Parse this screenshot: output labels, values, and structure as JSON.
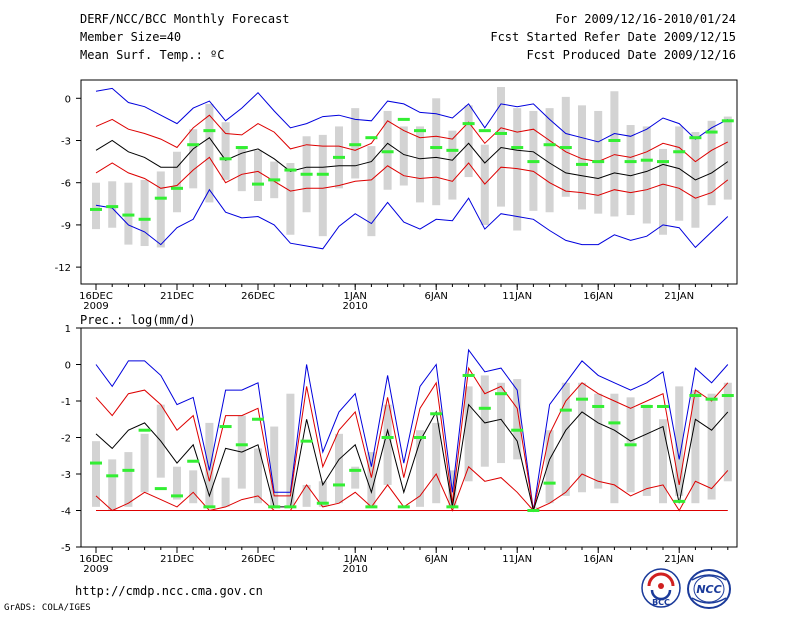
{
  "header": {
    "title": "DERF/NCC/BCC Monthly Forecast",
    "members": "Member Size=40",
    "variable": "Mean Surf. Temp.: ºC",
    "period": "For 2009/12/16-2010/01/24",
    "started": "Fcst Started Refer Date 2009/12/15",
    "produced": "Fcst Produced Date 2009/12/16"
  },
  "footer": {
    "url": "http://cmdp.ncc.cma.gov.cn",
    "credit": "GrADS: COLA/IGES",
    "logo_bcc": "BCC",
    "logo_ncc": "NCC"
  },
  "colors": {
    "box": "#d3d3d3",
    "median": "#33ee33",
    "mean": "#000000",
    "inner": "#dd0000",
    "outer": "#0000dd"
  },
  "chart_data": [
    {
      "type": "line",
      "title": "Mean Surf. Temp.: ºC",
      "xlabels": [
        {
          "day": 0,
          "line1": "16DEC",
          "line2": "2009"
        },
        {
          "day": 5,
          "line1": "21DEC",
          "line2": ""
        },
        {
          "day": 10,
          "line1": "26DEC",
          "line2": ""
        },
        {
          "day": 16,
          "line1": "1JAN",
          "line2": "2010"
        },
        {
          "day": 21,
          "line1": "6JAN",
          "line2": ""
        },
        {
          "day": 26,
          "line1": "11JAN",
          "line2": ""
        },
        {
          "day": 31,
          "line1": "16JAN",
          "line2": ""
        },
        {
          "day": 36,
          "line1": "21JAN",
          "line2": ""
        }
      ],
      "yticks": [
        -12,
        -9,
        -6,
        -3,
        0
      ],
      "ylim": [
        -13.2,
        1.3
      ],
      "ndays": 40,
      "box_top": [
        -6,
        -5.9,
        -6,
        -5.8,
        -5.2,
        -3.8,
        -2.2,
        -0.4,
        -1.7,
        -3.4,
        -3.7,
        -4.5,
        -4.6,
        -2.7,
        -2.6,
        -2,
        -0.7,
        -3.4,
        -0.9,
        -2,
        -2,
        0,
        -2.3,
        -0.5,
        -3.3,
        0.8,
        -0.7,
        -0.9,
        -0.7,
        0.1,
        -0.5,
        -0.9,
        0.5,
        -1.9,
        -2,
        -3.6,
        -2,
        -2.4,
        -1.6,
        -1.3
      ],
      "box_bottom": [
        -9.3,
        -9.2,
        -10.4,
        -10.5,
        -10.6,
        -8.1,
        -6.4,
        -7.4,
        -5.8,
        -6.6,
        -7.3,
        -7.1,
        -9.7,
        -8.1,
        -9.8,
        -6.4,
        -5.7,
        -9.8,
        -6.5,
        -6.2,
        -7.4,
        -7.6,
        -7.2,
        -5.6,
        -9,
        -7.7,
        -9.4,
        -8,
        -8.1,
        -7,
        -7.9,
        -8.2,
        -8.4,
        -8.3,
        -8.9,
        -9.7,
        -8.7,
        -9.2,
        -7.6,
        -7.2
      ],
      "median": [
        -7.9,
        -7.7,
        -8.3,
        -8.6,
        -7.1,
        -6.4,
        -3.3,
        -2.3,
        -4.3,
        -3.5,
        -6.1,
        -5.8,
        -5.1,
        -5.4,
        -5.4,
        -4.2,
        -3.3,
        -2.8,
        -3.8,
        -1.5,
        -2.3,
        -3.5,
        -3.7,
        -1.8,
        -2.3,
        -2.5,
        -3.5,
        -4.5,
        -3.3,
        -3.5,
        -4.7,
        -4.5,
        -3,
        -4.5,
        -4.4,
        -4.5,
        -3.8,
        -2.8,
        -2.4,
        -1.6
      ],
      "series": [
        {
          "name": "upper",
          "role": "outer",
          "values": [
            0.5,
            0.7,
            -0.3,
            -0.6,
            -1.2,
            -1.8,
            -0.7,
            -0.2,
            -1.6,
            -0.7,
            0.4,
            -0.9,
            -2.1,
            -1.8,
            -1.3,
            -1.2,
            -1.5,
            -1.6,
            -0.2,
            -0.4,
            -1,
            -1.1,
            -1.4,
            -0.4,
            -2.1,
            -0.4,
            -0.6,
            -0.4,
            -1.5,
            -2.5,
            -2.8,
            -3.1,
            -2.5,
            -2.7,
            -2.2,
            -1.4,
            -1.8,
            -2.9,
            -2.1,
            -1.5
          ]
        },
        {
          "name": "upper2",
          "role": "inner",
          "values": [
            -2,
            -1.5,
            -2.2,
            -2.5,
            -2.9,
            -3.5,
            -2.1,
            -1.2,
            -2.5,
            -2.6,
            -1.8,
            -2.4,
            -3.6,
            -3.3,
            -3.4,
            -3.4,
            -3.7,
            -3.2,
            -1.6,
            -2.3,
            -2.8,
            -2.7,
            -2.9,
            -1.7,
            -3.2,
            -2.1,
            -2.4,
            -2.2,
            -3,
            -3.8,
            -4.3,
            -4.5,
            -4,
            -4.2,
            -3.8,
            -3.2,
            -3.5,
            -4.5,
            -3.7,
            -3.1
          ]
        },
        {
          "name": "mean",
          "role": "mean",
          "values": [
            -3.7,
            -3,
            -3.8,
            -4.2,
            -4.9,
            -4.9,
            -3.6,
            -2.8,
            -4.4,
            -3.9,
            -3.6,
            -4.3,
            -5.2,
            -4.9,
            -4.9,
            -4.8,
            -4.8,
            -4.5,
            -3.2,
            -4,
            -4.3,
            -4.2,
            -4.4,
            -3.2,
            -4.6,
            -3.5,
            -3.7,
            -3.8,
            -4.6,
            -5.3,
            -5.5,
            -5.7,
            -5.3,
            -5.5,
            -5.2,
            -4.7,
            -5,
            -5.8,
            -5.3,
            -4.5
          ]
        },
        {
          "name": "lower2",
          "role": "inner",
          "values": [
            -5.3,
            -4.6,
            -5.3,
            -5.7,
            -6.4,
            -6.2,
            -5.1,
            -4.2,
            -6,
            -5.4,
            -5.2,
            -5.9,
            -6.6,
            -6.4,
            -6.4,
            -6.2,
            -5.9,
            -5.8,
            -4.8,
            -5.5,
            -5.7,
            -5.6,
            -5.9,
            -4.6,
            -6.1,
            -4.9,
            -5,
            -5.2,
            -6,
            -6.6,
            -6.7,
            -6.9,
            -6.5,
            -6.7,
            -6.5,
            -6.1,
            -6.4,
            -7.1,
            -6.7,
            -5.8
          ]
        },
        {
          "name": "lower",
          "role": "outer",
          "values": [
            -7.6,
            -7.8,
            -9,
            -9.5,
            -10.4,
            -9.2,
            -8.6,
            -6.5,
            -8.1,
            -8.5,
            -8.4,
            -9,
            -10.3,
            -10.5,
            -10.7,
            -9.1,
            -8.2,
            -8.9,
            -7.4,
            -8.8,
            -9.3,
            -8.6,
            -8.7,
            -7.1,
            -9.3,
            -8.2,
            -8.4,
            -8.6,
            -9.4,
            -10.1,
            -10.4,
            -10.4,
            -9.7,
            -10.1,
            -9.8,
            -9,
            -9.2,
            -10.6,
            -9.5,
            -8.4
          ]
        }
      ]
    },
    {
      "type": "line",
      "title": "Prec.: log(mm/d)",
      "xlabels": [
        {
          "day": 0,
          "line1": "16DEC",
          "line2": "2009"
        },
        {
          "day": 5,
          "line1": "21DEC",
          "line2": ""
        },
        {
          "day": 10,
          "line1": "26DEC",
          "line2": ""
        },
        {
          "day": 16,
          "line1": "1JAN",
          "line2": "2010"
        },
        {
          "day": 21,
          "line1": "6JAN",
          "line2": ""
        },
        {
          "day": 26,
          "line1": "11JAN",
          "line2": ""
        },
        {
          "day": 31,
          "line1": "16JAN",
          "line2": ""
        },
        {
          "day": 36,
          "line1": "21JAN",
          "line2": ""
        }
      ],
      "yticks": [
        -5,
        -4,
        -3,
        -2,
        -1,
        0,
        1
      ],
      "ylim": [
        -5,
        1
      ],
      "ndays": 40,
      "box_top": [
        -2.1,
        -2.6,
        -2.4,
        -1.9,
        -1.1,
        -2.8,
        -2.9,
        -1.6,
        -3.1,
        -1.4,
        -2.3,
        -1.7,
        -0.8,
        -3.3,
        -3.2,
        -1.9,
        -2.8,
        -2.4,
        -1.1,
        -3.9,
        -1.8,
        -1.6,
        -2.9,
        -0.6,
        -0.3,
        -0.5,
        -0.4,
        -3.9,
        -1.8,
        -0.5,
        -0.5,
        -0.8,
        -0.8,
        -0.9,
        -1.1,
        -1.5,
        -0.6,
        -0.7,
        -0.8,
        -0.5
      ],
      "box_bottom": [
        -3.9,
        -4,
        -3.9,
        -3.5,
        -3.1,
        -3.7,
        -3.8,
        -3.9,
        -3.9,
        -3.4,
        -3.8,
        -3.9,
        -3.9,
        -3.9,
        -3.9,
        -3.8,
        -3.4,
        -3.9,
        -3.3,
        -3.9,
        -3.9,
        -3.8,
        -3.9,
        -3.2,
        -2.8,
        -2.7,
        -2.6,
        -3.9,
        -3.8,
        -3.6,
        -3.5,
        -3.4,
        -3.8,
        -3.5,
        -3.6,
        -3.8,
        -3.6,
        -3.8,
        -3.7,
        -3.2
      ],
      "median": [
        -2.7,
        -3.05,
        -2.9,
        -1.8,
        -3.4,
        -3.6,
        -2.65,
        -3.9,
        -1.7,
        -2.2,
        -1.5,
        -3.9,
        -3.9,
        -2.1,
        -3.8,
        -3.3,
        -2.9,
        -3.9,
        -2,
        -3.9,
        -2,
        -1.35,
        -3.9,
        -0.3,
        -1.2,
        -0.8,
        -1.8,
        -4,
        -3.25,
        -1.25,
        -0.95,
        -1.15,
        -1.6,
        -2.2,
        -1.15,
        -1.15,
        -3.75,
        -0.85,
        -0.95,
        -0.85
      ],
      "series": [
        {
          "name": "upper",
          "role": "outer",
          "values": [
            0,
            -0.6,
            0.1,
            0.1,
            -0.3,
            -1.1,
            -0.9,
            -2.9,
            -0.7,
            -0.7,
            -0.5,
            -3.5,
            -3.5,
            0,
            -2.4,
            -1.3,
            -0.8,
            -2.8,
            -0.3,
            -2.7,
            -0.6,
            0,
            -3.5,
            0.4,
            -0.2,
            -0.1,
            -0.7,
            -4,
            -1.1,
            -0.5,
            0.1,
            -0.3,
            -0.5,
            -0.7,
            -0.5,
            -0.2,
            -2.6,
            -0.1,
            -0.5,
            0
          ]
        },
        {
          "name": "upper2",
          "role": "inner",
          "values": [
            -0.9,
            -1.4,
            -0.8,
            -0.7,
            -1.1,
            -1.8,
            -1.4,
            -3.2,
            -1.4,
            -1.4,
            -1.2,
            -3.6,
            -3.6,
            -0.6,
            -2.8,
            -1.8,
            -1.3,
            -3.1,
            -0.9,
            -3.1,
            -1.2,
            -0.5,
            -3.8,
            -0.1,
            -0.8,
            -0.6,
            -1.2,
            -4,
            -1.9,
            -1,
            -0.5,
            -0.8,
            -1,
            -1.2,
            -1,
            -0.8,
            -3.3,
            -0.7,
            -1,
            -0.5
          ]
        },
        {
          "name": "mean",
          "role": "mean",
          "values": [
            -1.9,
            -2.3,
            -1.8,
            -1.6,
            -2.1,
            -2.7,
            -2.2,
            -3.6,
            -2.3,
            -2.4,
            -2.2,
            -3.9,
            -3.9,
            -1.5,
            -3.3,
            -2.6,
            -2.2,
            -3.5,
            -1.8,
            -3.5,
            -2.1,
            -1.3,
            -3.9,
            -1.1,
            -1.6,
            -1.5,
            -2.1,
            -4,
            -2.6,
            -1.8,
            -1.3,
            -1.6,
            -1.8,
            -2.1,
            -1.9,
            -1.7,
            -3.8,
            -1.5,
            -1.8,
            -1.3
          ]
        },
        {
          "name": "lower",
          "role": "inner",
          "values": [
            -3.6,
            -4,
            -3.8,
            -3.5,
            -3.7,
            -3.9,
            -3.5,
            -4,
            -3.9,
            -3.7,
            -3.6,
            -4,
            -4,
            -3.3,
            -3.9,
            -3.8,
            -3.5,
            -3.9,
            -3.3,
            -3.9,
            -3.6,
            -3,
            -4,
            -2.8,
            -3.2,
            -3.1,
            -3.5,
            -4,
            -3.8,
            -3.5,
            -3,
            -3.2,
            -3.3,
            -3.6,
            -3.4,
            -3.3,
            -4,
            -3.2,
            -3.4,
            -2.9
          ]
        }
      ],
      "floor": -4
    }
  ]
}
